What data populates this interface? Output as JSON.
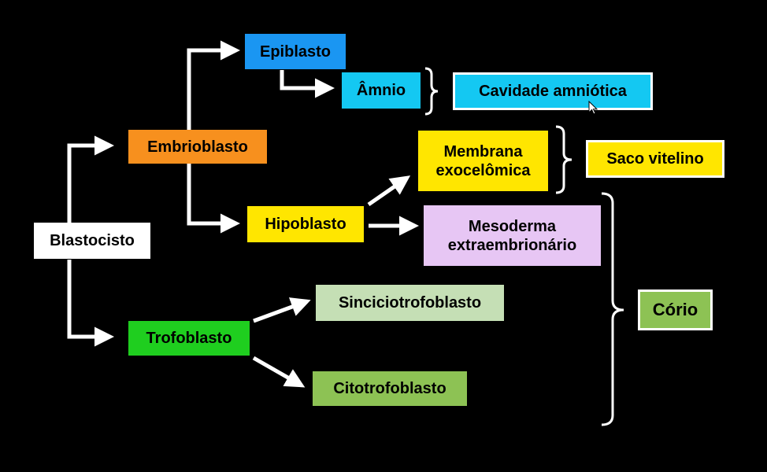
{
  "nodes": {
    "blastocisto": {
      "label": "Blastocisto",
      "color": "#ffffff"
    },
    "embrioblasto": {
      "label": "Embrioblasto",
      "color": "#f7901e"
    },
    "trofoblasto": {
      "label": "Trofoblasto",
      "color": "#1fce1f"
    },
    "epiblasto": {
      "label": "Epiblasto",
      "color": "#1a96f2"
    },
    "amnio": {
      "label": "Âmnio",
      "color": "#14c8f2"
    },
    "cavidade_amniotica": {
      "label": "Cavidade amniótica",
      "color": "#14c8f2"
    },
    "hipoblasto": {
      "label": "Hipoblasto",
      "color": "#ffe600"
    },
    "membrana_exocelomica": {
      "line1": "Membrana",
      "line2": "exocelômica",
      "color": "#ffe600"
    },
    "saco_vitelino": {
      "label": "Saco vitelino",
      "color": "#ffe600"
    },
    "mesoderma_extraembrionario": {
      "line1": "Mesoderma",
      "line2": "extraembrionário",
      "color": "#e7c6f4"
    },
    "sinciciotrofoblasto": {
      "label": "Sinciciotrofoblasto",
      "color": "#c5dfb5"
    },
    "citotrofoblasto": {
      "label": "Citotrofoblasto",
      "color": "#8dc254"
    },
    "corio": {
      "label": "Cório",
      "color": "#8dc254"
    }
  },
  "line_color": "#ffffff"
}
